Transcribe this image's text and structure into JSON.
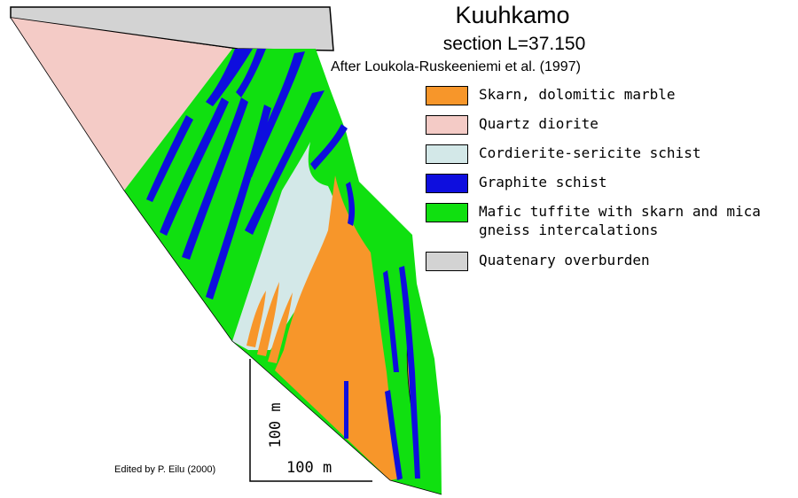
{
  "title": "Kuuhkamo",
  "subtitle": "section L=37.150",
  "source_credit": "After Loukola-Ruskeeniemi et al. (1997)",
  "edited_credit": "Edited by P. Eilu (2000)",
  "legend": [
    {
      "label": "Skarn, dolomitic marble",
      "color": "#f7962a"
    },
    {
      "label": "Quartz diorite",
      "color": "#f4cbc6"
    },
    {
      "label": "Cordierite-sericite schist",
      "color": "#d3e8e8"
    },
    {
      "label": "Graphite schist",
      "color": "#0e0ede"
    },
    {
      "label_line1": "Mafic tuffite with skarn and mica",
      "label_line2": "gneiss intercalations",
      "color": "#10e010"
    },
    {
      "label": "Quatenary overburden",
      "color": "#d3d3d3"
    }
  ],
  "scale_bar": {
    "vertical_label": "100 m",
    "horizontal_label": "100 m"
  }
}
